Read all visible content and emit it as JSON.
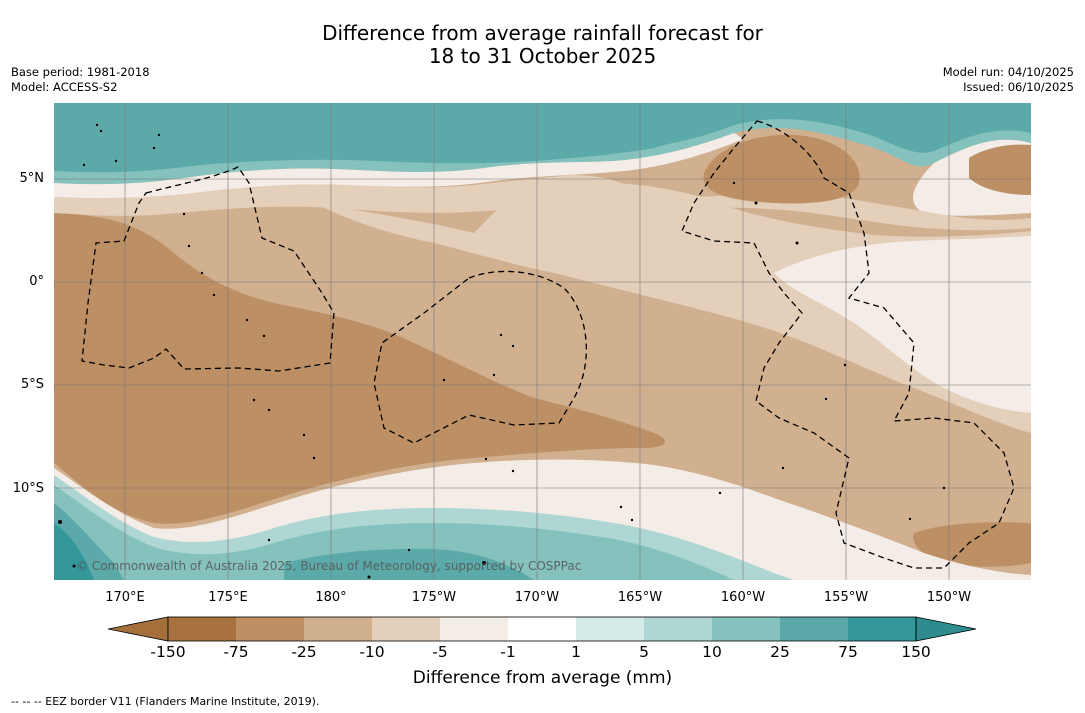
{
  "header": {
    "title_line1": "Difference from average rainfall forecast for",
    "title_line2": "18 to 31 October 2025",
    "base_period": "Base period: 1981-2018",
    "model": "Model: ACCESS-S2",
    "model_run": "Model run: 04/10/2025",
    "issued": "Issued: 06/10/2025"
  },
  "map": {
    "copyright": "© Commonwealth of Australia 2025, Bureau of Meteorology, supported by COSPPac",
    "lat_labels": [
      "5°N",
      "0°",
      "5°S",
      "10°S"
    ],
    "lon_labels": [
      "170°E",
      "175°E",
      "180°",
      "175°W",
      "170°W",
      "165°W",
      "160°W",
      "155°W",
      "150°W"
    ]
  },
  "colorbar": {
    "label": "Difference from average (mm)",
    "ticks": [
      "-150",
      "-75",
      "-25",
      "-10",
      "-5",
      "-1",
      "1",
      "5",
      "10",
      "25",
      "75",
      "150"
    ],
    "colors": {
      "below_min": "#a56f3c",
      "c1": "#a87240",
      "c2": "#bd8f64",
      "c3": "#d1b090",
      "c4": "#e4cfbb",
      "c5": "#f4ece7",
      "c6": "#ffffff",
      "c7": "#d4eae7",
      "c8": "#aed7d3",
      "c9": "#85c1bd",
      "c10": "#5ca9aa",
      "c11": "#34979a",
      "above_max": "#2e8c8e"
    }
  },
  "footer": {
    "eez_note": "--  --  -- EEZ border V11 (Flanders Marine Institute, 2019)."
  }
}
